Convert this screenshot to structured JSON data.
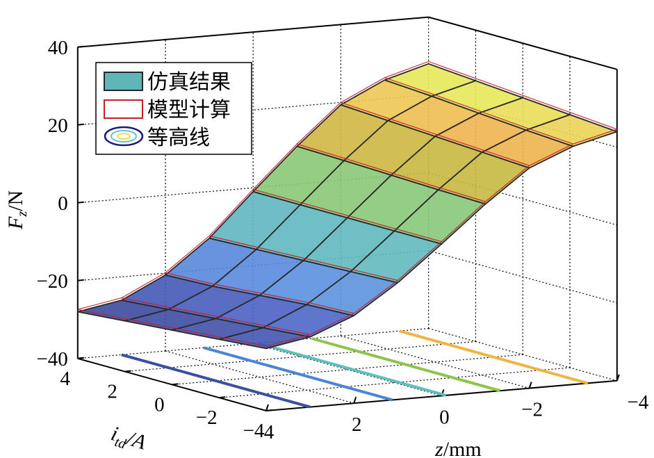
{
  "chart_data": {
    "type": "surface3d",
    "xlabel": {
      "main": "z",
      "unit": "/mm"
    },
    "ylabel": {
      "main": "i",
      "sub": "td",
      "unit": "/A"
    },
    "zlabel": {
      "main": "F",
      "sub": "z",
      "unit": "/N"
    },
    "z_values": [
      4,
      3,
      2,
      1,
      0,
      -1,
      -2,
      -3,
      -4
    ],
    "i_values": [
      -4,
      -2,
      0,
      2,
      4
    ],
    "Fz_surface": [
      [
        -24,
        -25,
        -26,
        -27,
        -28
      ],
      [
        -22,
        -23,
        -24,
        -25,
        -26
      ],
      [
        -17.5,
        -18,
        -19,
        -20,
        -20.5
      ],
      [
        -10,
        -10.5,
        -11,
        -11.5,
        -12
      ],
      [
        -1,
        -1,
        -1,
        -1,
        -1
      ],
      [
        8.3,
        8.6,
        9,
        9.4,
        9.7
      ],
      [
        16.6,
        17.3,
        18,
        18.7,
        19.4
      ],
      [
        21.2,
        22,
        23,
        24,
        24.8
      ],
      [
        24,
        25,
        26,
        27,
        28
      ]
    ],
    "xlim": [
      -4,
      4
    ],
    "ylim": [
      -4,
      4
    ],
    "zlim": [
      -40,
      40
    ],
    "grid": true,
    "x_ticks": [
      "4",
      "2",
      "0",
      "−2",
      "−4"
    ],
    "y_ticks": [
      "4",
      "2",
      "0",
      "−2",
      "−4"
    ],
    "z_ticks": [
      "40",
      "20",
      "0",
      "−20",
      "−40"
    ],
    "contour_levels": [
      -24,
      -12,
      0,
      12,
      24
    ],
    "contour_colors": [
      "#3b4fa0",
      "#4c84d6",
      "#5fc0bc",
      "#8cc44c",
      "#f0b444"
    ],
    "model_color": "#c0202a",
    "legend": {
      "position": "top-left",
      "entries": [
        {
          "label": "仿真结果",
          "swatch": "filled-rect",
          "color": "#5fb5b8"
        },
        {
          "label": "模型计算",
          "swatch": "outline-rect",
          "color": "#c0202a"
        },
        {
          "label": "等高线",
          "swatch": "contour-ellipses",
          "colors": [
            "#1a1a7a",
            "#6bbcd8",
            "#e8e040"
          ]
        }
      ]
    }
  }
}
